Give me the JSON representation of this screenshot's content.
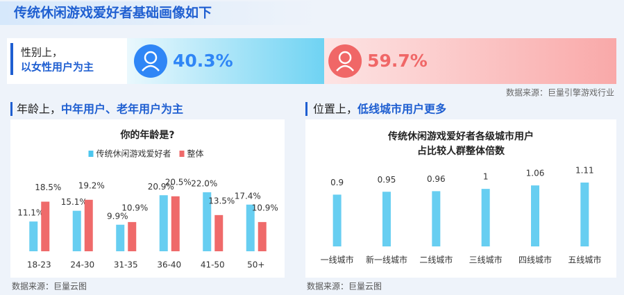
{
  "title": "传统休闲游戏爱好者基础画像如下",
  "gender": {
    "label_lead": "性别上，",
    "label_main": "以女性用户为主",
    "values": [
      40.3,
      59.7
    ],
    "value_labels": [
      "40.3%",
      "59.7%"
    ],
    "colors": [
      "#2f86f6",
      "#f06767"
    ],
    "source": "数据来源：巨量引擎游戏行业"
  },
  "chart_data": [
    {
      "type": "bar",
      "heading_lead": "年龄上，",
      "heading_main": "中年用户、老年用户为主",
      "title": "你的年龄是?",
      "categories": [
        "18-23",
        "24-30",
        "31-35",
        "36-40",
        "41-50",
        "50+"
      ],
      "series": [
        {
          "name": "传统休闲游戏爱好者",
          "color": "#4cc6ee",
          "values": [
            11.1,
            15.1,
            9.9,
            20.9,
            22.0,
            17.4
          ],
          "value_labels": [
            "11.1%",
            "15.1%",
            "9.9%",
            "20.9%",
            "22.0%",
            "17.4%"
          ]
        },
        {
          "name": "整体",
          "color": "#ef6a6a",
          "values": [
            18.5,
            19.2,
            10.9,
            20.5,
            13.5,
            10.9
          ],
          "value_labels": [
            "18.5%",
            "19.2%",
            "10.9%",
            "20.5%",
            "13.5%",
            "10.9%"
          ]
        }
      ],
      "legend": "top",
      "source": "数据来源：巨量云图"
    },
    {
      "type": "bar",
      "heading_lead": "位置上，",
      "heading_main": "低线城市用户更多",
      "title": [
        "传统休闲游戏爱好者各级城市用户",
        "占比较人群整体倍数"
      ],
      "categories": [
        "一线城市",
        "新一线城市",
        "二线城市",
        "三线城市",
        "四线城市",
        "五线城市"
      ],
      "values": [
        0.9,
        0.95,
        0.96,
        1,
        1.06,
        1.11
      ],
      "color": "#4cc6ee",
      "source": "数据来源：巨量云图"
    }
  ]
}
